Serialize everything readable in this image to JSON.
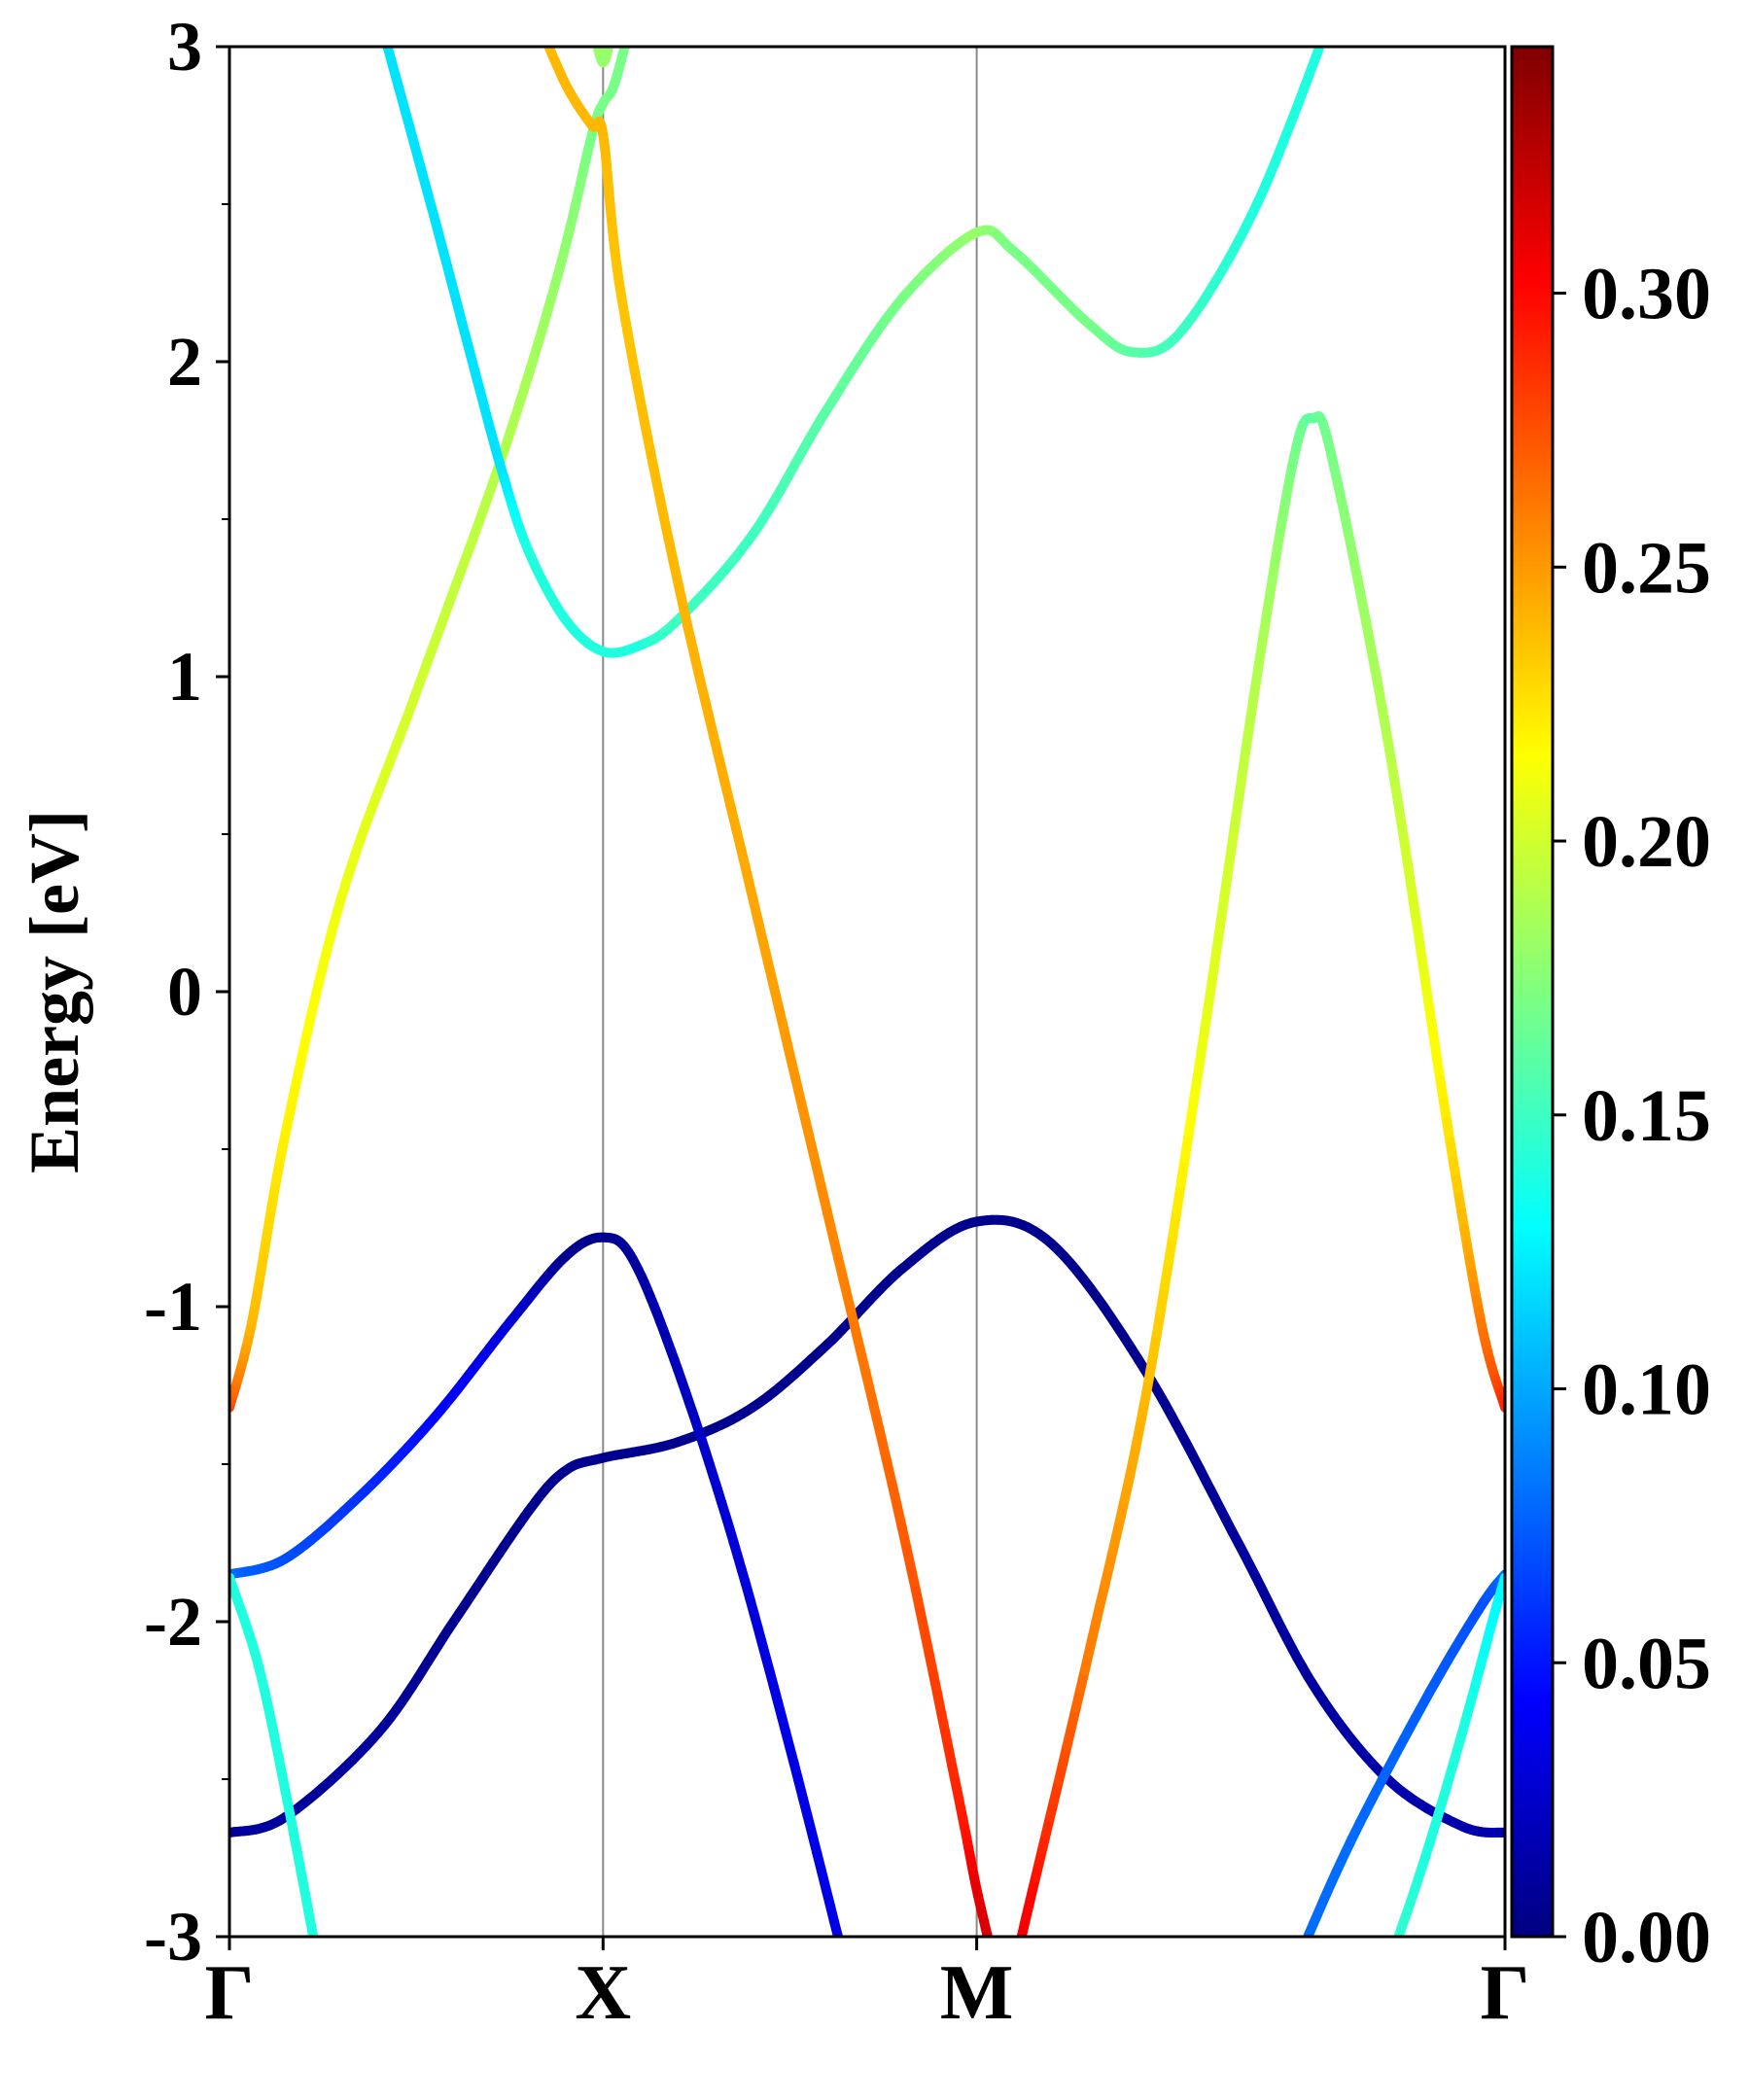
{
  "chart_data": {
    "type": "line",
    "title": "",
    "ylabel": "Energy [eV]",
    "xlabel": "",
    "ylim": [
      -3,
      3
    ],
    "yticks": [
      -3,
      -2,
      -1,
      0,
      1,
      2,
      3
    ],
    "x_kpoints": [
      {
        "label": "Γ",
        "x": 0
      },
      {
        "label": "X",
        "x": 1
      },
      {
        "label": "M",
        "x": 2
      },
      {
        "label": "Γ",
        "x": 3.414
      }
    ],
    "colorbar": {
      "min": 0.0,
      "max": 0.345,
      "ticks": [
        "0.00",
        "0.05",
        "0.10",
        "0.15",
        "0.20",
        "0.25",
        "0.30"
      ],
      "colormap": "jet"
    },
    "series": [
      {
        "points": [
          [
            0,
            -2.67
          ],
          [
            0.15,
            -2.62
          ],
          [
            0.4,
            -2.35
          ],
          [
            0.6,
            -2.0
          ],
          [
            0.8,
            -1.65
          ],
          [
            0.9,
            -1.52
          ],
          [
            1.0,
            -1.48
          ],
          [
            1.2,
            -1.43
          ],
          [
            1.4,
            -1.32
          ],
          [
            1.6,
            -1.12
          ],
          [
            1.8,
            -0.88
          ],
          [
            2.0,
            -0.73
          ],
          [
            2.2,
            -0.8
          ],
          [
            2.45,
            -1.2
          ],
          [
            2.7,
            -1.75
          ],
          [
            2.9,
            -2.2
          ],
          [
            3.1,
            -2.5
          ],
          [
            3.3,
            -2.65
          ],
          [
            3.414,
            -2.67
          ]
        ],
        "weights": [
          0.01,
          0.01,
          0.01,
          0.005,
          0.005,
          0.005,
          0.005,
          0.005,
          0.005,
          0.005,
          0.005,
          0.005,
          0.005,
          0.005,
          0.01,
          0.01,
          0.015,
          0.015,
          0.015
        ]
      },
      {
        "points": [
          [
            0,
            -1.85
          ],
          [
            0.15,
            -1.8
          ],
          [
            0.35,
            -1.6
          ],
          [
            0.55,
            -1.35
          ],
          [
            0.75,
            -1.05
          ],
          [
            0.9,
            -0.84
          ],
          [
            1.0,
            -0.78
          ],
          [
            1.08,
            -0.85
          ],
          [
            1.2,
            -1.2
          ],
          [
            1.35,
            -1.75
          ],
          [
            1.5,
            -2.4
          ],
          [
            1.65,
            -3.1
          ]
        ],
        "weights": [
          0.08,
          0.07,
          0.06,
          0.045,
          0.03,
          0.005,
          0.005,
          0.01,
          0.02,
          0.03,
          0.035,
          0.035
        ]
      },
      {
        "points": [
          [
            0,
            -1.86
          ],
          [
            0.08,
            -2.15
          ],
          [
            0.16,
            -2.6
          ],
          [
            0.24,
            -3.1
          ]
        ],
        "weights": [
          0.14,
          0.14,
          0.14,
          0.14
        ]
      },
      {
        "points": [
          [
            0,
            -1.32
          ],
          [
            0.06,
            -1.05
          ],
          [
            0.15,
            -0.45
          ],
          [
            0.3,
            0.3
          ],
          [
            0.5,
            0.95
          ],
          [
            0.73,
            1.7
          ],
          [
            0.88,
            2.28
          ],
          [
            0.97,
            2.72
          ],
          [
            1.0,
            2.82
          ],
          [
            1.03,
            2.88
          ],
          [
            1.08,
            3.1
          ]
        ],
        "weights": [
          0.28,
          0.24,
          0.22,
          0.21,
          0.2,
          0.19,
          0.18,
          0.17,
          0.17,
          0.17,
          0.17
        ]
      },
      {
        "points": [
          [
            0.4,
            3.1
          ],
          [
            0.55,
            2.45
          ],
          [
            0.65,
            2.0
          ],
          [
            0.73,
            1.65
          ],
          [
            0.8,
            1.4
          ],
          [
            0.9,
            1.18
          ],
          [
            1.0,
            1.08
          ],
          [
            1.1,
            1.1
          ],
          [
            1.2,
            1.18
          ],
          [
            1.4,
            1.45
          ],
          [
            1.6,
            1.85
          ],
          [
            1.8,
            2.2
          ],
          [
            2.0,
            2.41
          ],
          [
            2.1,
            2.35
          ],
          [
            2.3,
            2.12
          ],
          [
            2.42,
            2.03
          ],
          [
            2.55,
            2.1
          ],
          [
            2.75,
            2.5
          ],
          [
            2.95,
            3.1
          ]
        ],
        "weights": [
          0.12,
          0.12,
          0.12,
          0.12,
          0.14,
          0.14,
          0.14,
          0.14,
          0.15,
          0.15,
          0.16,
          0.17,
          0.18,
          0.17,
          0.17,
          0.16,
          0.15,
          0.14,
          0.14
        ]
      },
      {
        "points": [
          [
            0.82,
            3.1
          ],
          [
            0.9,
            2.88
          ],
          [
            0.97,
            2.75
          ],
          [
            1.0,
            2.72
          ],
          [
            1.05,
            2.2
          ],
          [
            1.2,
            1.3
          ],
          [
            1.4,
            0.3
          ],
          [
            1.6,
            -0.7
          ],
          [
            1.8,
            -1.7
          ],
          [
            1.95,
            -2.55
          ],
          [
            2.0,
            -2.85
          ],
          [
            2.05,
            -3.1
          ]
        ],
        "weights": [
          0.24,
          0.24,
          0.24,
          0.24,
          0.235,
          0.24,
          0.245,
          0.255,
          0.27,
          0.29,
          0.31,
          0.32
        ]
      },
      {
        "points": [
          [
            2.1,
            -3.1
          ],
          [
            2.15,
            -2.85
          ],
          [
            2.3,
            -2.1
          ],
          [
            2.45,
            -1.3
          ],
          [
            2.6,
            -0.2
          ],
          [
            2.75,
            1.0
          ],
          [
            2.85,
            1.7
          ],
          [
            2.9,
            1.82
          ],
          [
            2.95,
            1.7
          ],
          [
            3.1,
            0.8
          ],
          [
            3.25,
            -0.35
          ],
          [
            3.35,
            -1.05
          ],
          [
            3.414,
            -1.32
          ]
        ],
        "weights": [
          0.32,
          0.3,
          0.26,
          0.24,
          0.21,
          0.19,
          0.17,
          0.16,
          0.17,
          0.19,
          0.22,
          0.26,
          0.29
        ]
      },
      {
        "points": [
          [
            2.85,
            -3.1
          ],
          [
            3.0,
            -2.7
          ],
          [
            3.2,
            -2.25
          ],
          [
            3.35,
            -1.95
          ],
          [
            3.414,
            -1.85
          ]
        ],
        "weights": [
          0.08,
          0.08,
          0.075,
          0.07,
          0.08
        ]
      },
      {
        "points": [
          [
            3.1,
            -3.1
          ],
          [
            3.2,
            -2.75
          ],
          [
            3.3,
            -2.35
          ],
          [
            3.38,
            -2.0
          ],
          [
            3.414,
            -1.86
          ]
        ],
        "weights": [
          0.15,
          0.14,
          0.14,
          0.13,
          0.13
        ]
      },
      {
        "points": [
          [
            0.97,
            3.1
          ],
          [
            1.0,
            2.95
          ],
          [
            1.03,
            3.1
          ]
        ],
        "weights": [
          0.18,
          0.18,
          0.18
        ]
      }
    ]
  }
}
